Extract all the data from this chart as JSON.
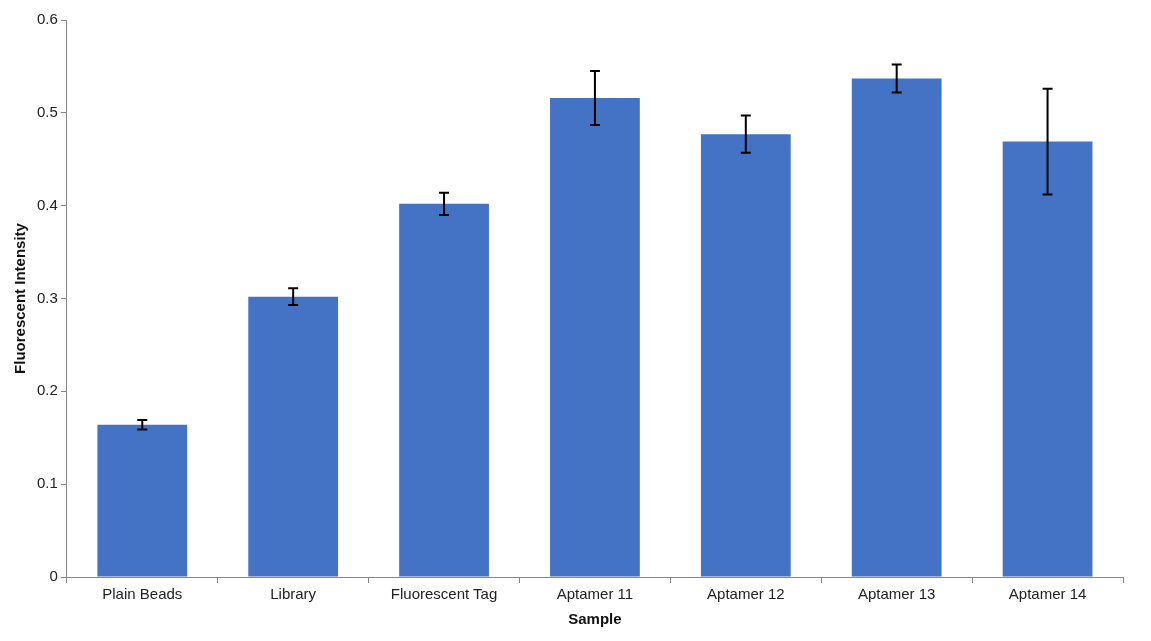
{
  "chart_data": {
    "type": "bar",
    "xlabel": "Sample",
    "ylabel": "Fluorescent Intensity",
    "categories": [
      "Plain Beads",
      "Library",
      "Fluorescent Tag",
      "Aptamer 11",
      "Aptamer 12",
      "Aptamer 13",
      "Aptamer 14"
    ],
    "values": [
      0.164,
      0.302,
      0.402,
      0.516,
      0.477,
      0.537,
      0.469
    ],
    "errors": [
      0.005,
      0.009,
      0.012,
      0.029,
      0.02,
      0.015,
      0.057
    ],
    "color": "#4472c4",
    "ylim": [
      0,
      0.6
    ],
    "yticks": [
      0,
      0.1,
      0.2,
      0.3,
      0.4,
      0.5,
      0.6
    ],
    "grid": false,
    "legend": false
  }
}
